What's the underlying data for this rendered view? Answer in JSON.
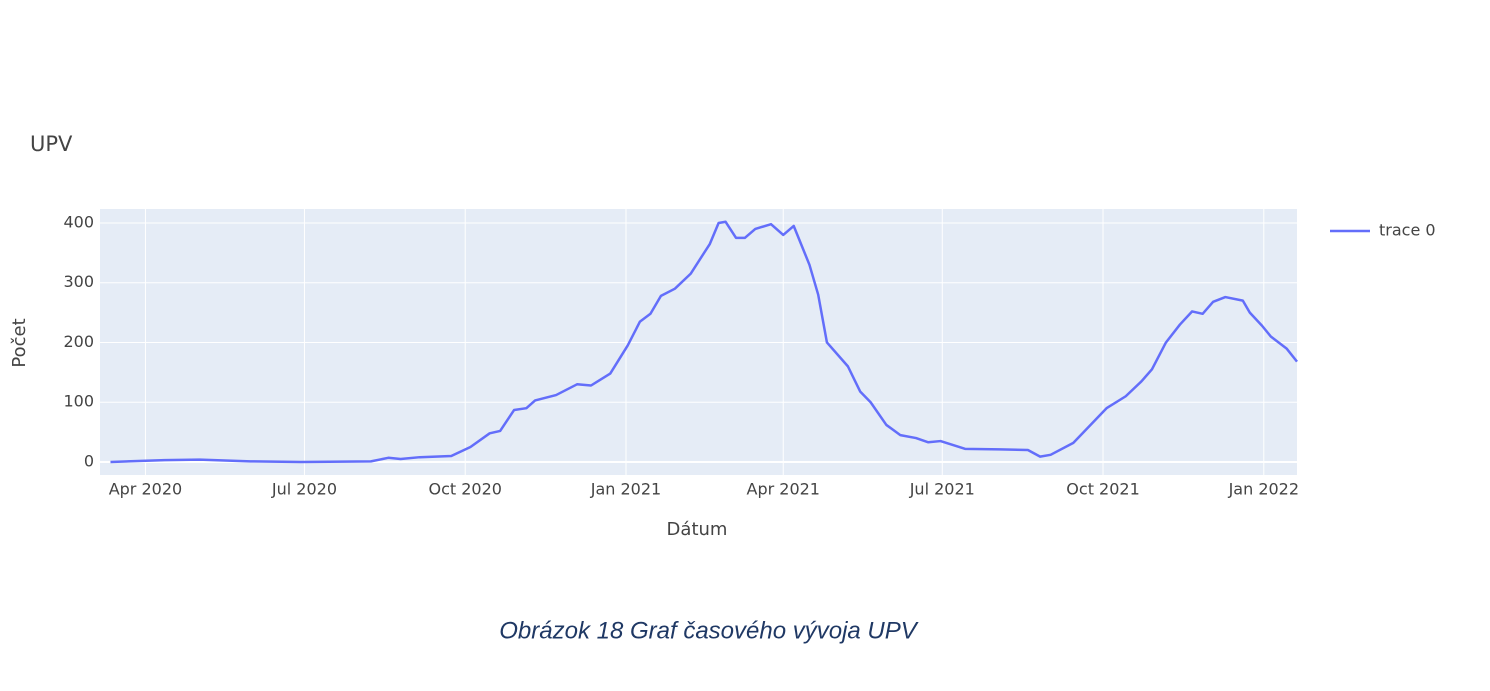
{
  "chart_data": {
    "type": "line",
    "title": "UPV",
    "x_label": "Dátum",
    "y_label": "Počet",
    "x": [
      "2020-03-12",
      "2020-04-12",
      "2020-05-02",
      "2020-05-31",
      "2020-06-29",
      "2020-08-08",
      "2020-08-18",
      "2020-08-25",
      "2020-09-05",
      "2020-09-23",
      "2020-10-04",
      "2020-10-15",
      "2020-10-21",
      "2020-10-29",
      "2020-11-05",
      "2020-11-10",
      "2020-11-22",
      "2020-12-04",
      "2020-12-12",
      "2020-12-23",
      "2021-01-02",
      "2021-01-09",
      "2021-01-15",
      "2021-01-21",
      "2021-01-29",
      "2021-02-07",
      "2021-02-18",
      "2021-02-23",
      "2021-02-27",
      "2021-03-05",
      "2021-03-10",
      "2021-03-16",
      "2021-03-25",
      "2021-04-01",
      "2021-04-07",
      "2021-04-16",
      "2021-04-21",
      "2021-04-26",
      "2021-05-08",
      "2021-05-15",
      "2021-05-21",
      "2021-05-30",
      "2021-06-07",
      "2021-06-16",
      "2021-06-23",
      "2021-06-30",
      "2021-07-14",
      "2021-08-03",
      "2021-08-19",
      "2021-08-26",
      "2021-09-01",
      "2021-09-14",
      "2021-10-03",
      "2021-10-14",
      "2021-10-23",
      "2021-10-29",
      "2021-11-06",
      "2021-11-14",
      "2021-11-21",
      "2021-11-27",
      "2021-12-03",
      "2021-12-10",
      "2021-12-20",
      "2021-12-24",
      "2021-12-31",
      "2022-01-05",
      "2022-01-14",
      "2022-01-20"
    ],
    "series": [
      {
        "name": "trace 0",
        "color": "#636efa",
        "values": [
          0,
          3,
          4,
          1,
          0,
          1,
          7,
          5,
          8,
          10,
          25,
          48,
          52,
          87,
          90,
          103,
          112,
          130,
          128,
          148,
          195,
          235,
          248,
          278,
          290,
          315,
          365,
          400,
          402,
          375,
          375,
          390,
          398,
          380,
          395,
          330,
          280,
          200,
          160,
          118,
          100,
          62,
          45,
          40,
          33,
          35,
          22,
          21,
          20,
          9,
          12,
          32,
          90,
          110,
          135,
          155,
          200,
          230,
          252,
          248,
          268,
          276,
          270,
          250,
          228,
          210,
          190,
          168
        ]
      }
    ],
    "xlim": [
      "2020-03-06",
      "2022-01-20"
    ],
    "xticks": [
      {
        "value": "2020-04-01",
        "label": "Apr 2020"
      },
      {
        "value": "2020-07-01",
        "label": "Jul 2020"
      },
      {
        "value": "2020-10-01",
        "label": "Oct 2020"
      },
      {
        "value": "2021-01-01",
        "label": "Jan 2021"
      },
      {
        "value": "2021-04-01",
        "label": "Apr 2021"
      },
      {
        "value": "2021-07-01",
        "label": "Jul 2021"
      },
      {
        "value": "2021-10-01",
        "label": "Oct 2021"
      },
      {
        "value": "2022-01-01",
        "label": "Jan 2022"
      }
    ],
    "ylim": [
      -21.8,
      423.4
    ],
    "yticks": [
      0,
      100,
      200,
      300,
      400
    ],
    "grid": true
  },
  "caption": "Obrázok 18 Graf časového vývoja UPV"
}
